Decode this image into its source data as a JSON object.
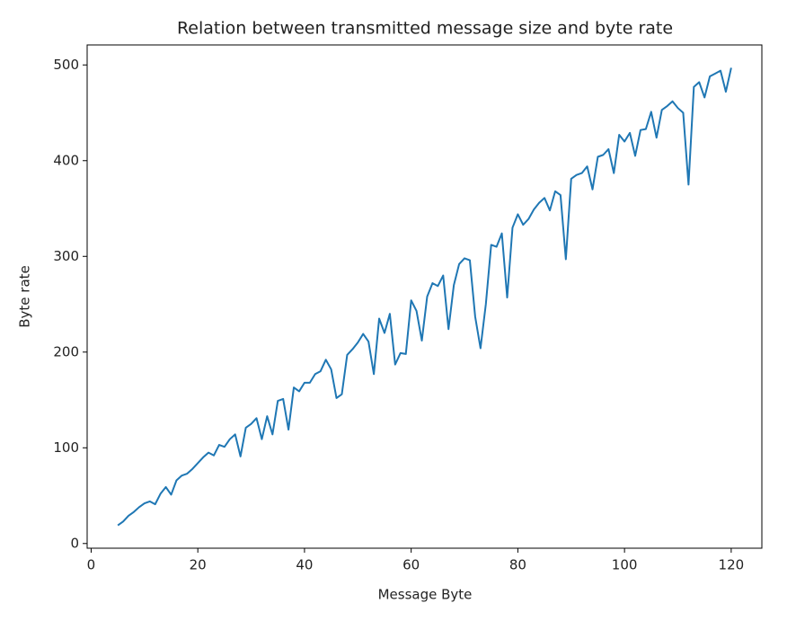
{
  "chart_data": {
    "type": "line",
    "title": "Relation between transmitted message size and byte rate",
    "xlabel": "Message Byte",
    "ylabel": "Byte rate",
    "x": [
      5,
      6,
      7,
      8,
      9,
      10,
      11,
      12,
      13,
      14,
      15,
      16,
      17,
      18,
      19,
      20,
      21,
      22,
      23,
      24,
      25,
      26,
      27,
      28,
      29,
      30,
      31,
      32,
      33,
      34,
      35,
      36,
      37,
      38,
      39,
      40,
      41,
      42,
      43,
      44,
      45,
      46,
      47,
      48,
      49,
      50,
      51,
      52,
      53,
      54,
      55,
      56,
      57,
      58,
      59,
      60,
      61,
      62,
      63,
      64,
      65,
      66,
      67,
      68,
      69,
      70,
      71,
      72,
      73,
      74,
      75,
      76,
      77,
      78,
      79,
      80,
      81,
      82,
      83,
      84,
      85,
      86,
      87,
      88,
      89,
      90,
      91,
      92,
      93,
      94,
      95,
      96,
      97,
      98,
      99,
      100,
      101,
      102,
      103,
      104,
      105,
      106,
      107,
      108,
      109,
      110,
      111,
      112,
      113,
      114,
      115,
      116,
      117,
      118,
      119,
      120
    ],
    "values": [
      19,
      23,
      29,
      33,
      38,
      42,
      44,
      41,
      52,
      59,
      51,
      66,
      71,
      73,
      78,
      84,
      90,
      95,
      92,
      103,
      101,
      109,
      114,
      91,
      121,
      125,
      131,
      109,
      133,
      114,
      149,
      151,
      119,
      163,
      159,
      168,
      168,
      177,
      180,
      192,
      182,
      152,
      156,
      197,
      203,
      210,
      219,
      211,
      177,
      235,
      220,
      240,
      187,
      199,
      198,
      254,
      243,
      212,
      258,
      272,
      269,
      280,
      224,
      270,
      292,
      298,
      296,
      237,
      204,
      250,
      312,
      310,
      324,
      257,
      330,
      344,
      333,
      339,
      349,
      356,
      361,
      348,
      368,
      364,
      297,
      381,
      385,
      387,
      394,
      370,
      404,
      406,
      412,
      387,
      427,
      420,
      429,
      405,
      432,
      433,
      451,
      424,
      453,
      457,
      462,
      455,
      450,
      375,
      477,
      482,
      466,
      488,
      491,
      494,
      472,
      497
    ],
    "color": "#1f77b4",
    "xlim": [
      -0.75,
      125.75
    ],
    "ylim": [
      -4.9,
      520.9
    ],
    "xticks": [
      0,
      20,
      40,
      60,
      80,
      100,
      120
    ],
    "yticks": [
      0,
      100,
      200,
      300,
      400,
      500
    ],
    "grid": false
  }
}
